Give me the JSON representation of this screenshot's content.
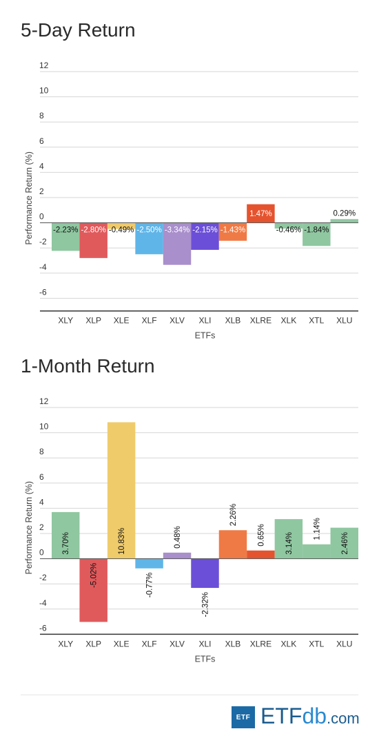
{
  "brand": {
    "box": "ETF",
    "name_a": "ETF",
    "name_b": "db",
    "name_c": ".com"
  },
  "chart_data": [
    {
      "type": "bar",
      "title": "5-Day Return",
      "xlabel": "ETFs",
      "ylabel": "Performance Return (%)",
      "ylim": [
        -7,
        12
      ],
      "yticks": [
        12,
        10,
        8,
        6,
        4,
        2,
        0,
        -2,
        -4,
        -6
      ],
      "grid": true,
      "label_orientation": "horizontal",
      "categories": [
        "XLY",
        "XLP",
        "XLE",
        "XLF",
        "XLV",
        "XLI",
        "XLB",
        "XLRE",
        "XLK",
        "XTL",
        "XLU"
      ],
      "values": [
        -2.23,
        -2.8,
        -0.49,
        -2.5,
        -3.34,
        -2.15,
        -1.43,
        1.47,
        -0.46,
        -1.84,
        0.29
      ],
      "labels": [
        "-2.23%",
        "-2.80%",
        "-0.49%",
        "-2.50%",
        "-3.34%",
        "-2.15%",
        "-1.43%",
        "1.47%",
        "-0.46%",
        "-1.84%",
        "0.29%"
      ],
      "colors": [
        "#8fc7a0",
        "#e05a5c",
        "#f0cb6a",
        "#5fb5e8",
        "#a98fcb",
        "#6b4fd8",
        "#ef7a45",
        "#e5532e",
        "#8fc7a0",
        "#8fc7a0",
        "#8fc7a0"
      ]
    },
    {
      "type": "bar",
      "title": "1-Month Return",
      "xlabel": "ETFs",
      "ylabel": "Performance Return (%)",
      "ylim": [
        -6,
        12
      ],
      "yticks": [
        12,
        10,
        8,
        6,
        4,
        2,
        0,
        -2,
        -4,
        -6
      ],
      "grid": true,
      "label_orientation": "vertical",
      "categories": [
        "XLY",
        "XLP",
        "XLE",
        "XLF",
        "XLV",
        "XLI",
        "XLB",
        "XLRE",
        "XLK",
        "XTL",
        "XLU"
      ],
      "values": [
        3.7,
        -5.02,
        10.83,
        -0.77,
        0.48,
        -2.32,
        2.26,
        0.65,
        3.14,
        1.14,
        2.46
      ],
      "labels": [
        "3.70%",
        "-5.02%",
        "10.83%",
        "-0.77%",
        "0.48%",
        "-2.32%",
        "2.26%",
        "0.65%",
        "3.14%",
        "1.14%",
        "2.46%"
      ],
      "colors": [
        "#8fc7a0",
        "#e05a5c",
        "#f0cb6a",
        "#5fb5e8",
        "#a98fcb",
        "#6b4fd8",
        "#ef7a45",
        "#e5532e",
        "#8fc7a0",
        "#8fc7a0",
        "#8fc7a0"
      ]
    }
  ]
}
